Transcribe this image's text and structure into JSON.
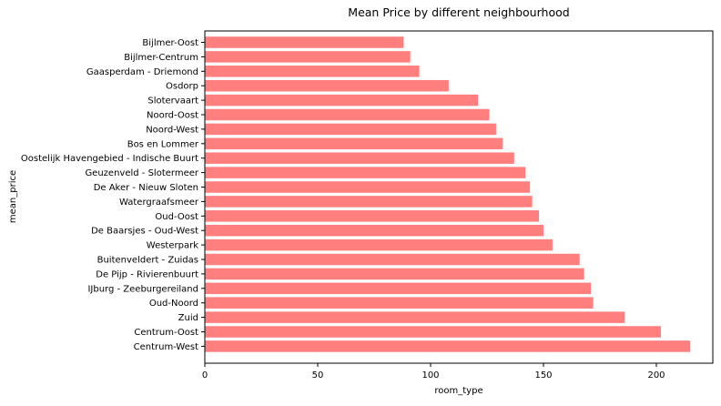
{
  "chart_data": {
    "type": "bar",
    "orientation": "horizontal",
    "title": "Mean Price by different neighbourhood",
    "xlabel": "room_type",
    "ylabel": "mean_price",
    "xlim": [
      0,
      225
    ],
    "xticks": [
      0,
      50,
      100,
      150,
      200
    ],
    "bar_color": "#ff7f7f",
    "grid": false,
    "categories": [
      "Bijlmer-Oost",
      "Bijlmer-Centrum",
      "Gaasperdam - Driemond",
      "Osdorp",
      "Slotervaart",
      "Noord-Oost",
      "Noord-West",
      "Bos en Lommer",
      "Oostelijk Havengebied - Indische Buurt",
      "Geuzenveld - Slotermeer",
      "De Aker - Nieuw Sloten",
      "Watergraafsmeer",
      "Oud-Oost",
      "De Baarsjes - Oud-West",
      "Westerpark",
      "Buitenveldert - Zuidas",
      "De Pijp - Rivierenbuurt",
      "IJburg - Zeeburgereiland",
      "Oud-Noord",
      "Zuid",
      "Centrum-Oost",
      "Centrum-West"
    ],
    "values": [
      88,
      91,
      95,
      108,
      121,
      126,
      129,
      132,
      137,
      142,
      144,
      145,
      148,
      150,
      154,
      166,
      168,
      171,
      172,
      186,
      202,
      215
    ]
  }
}
